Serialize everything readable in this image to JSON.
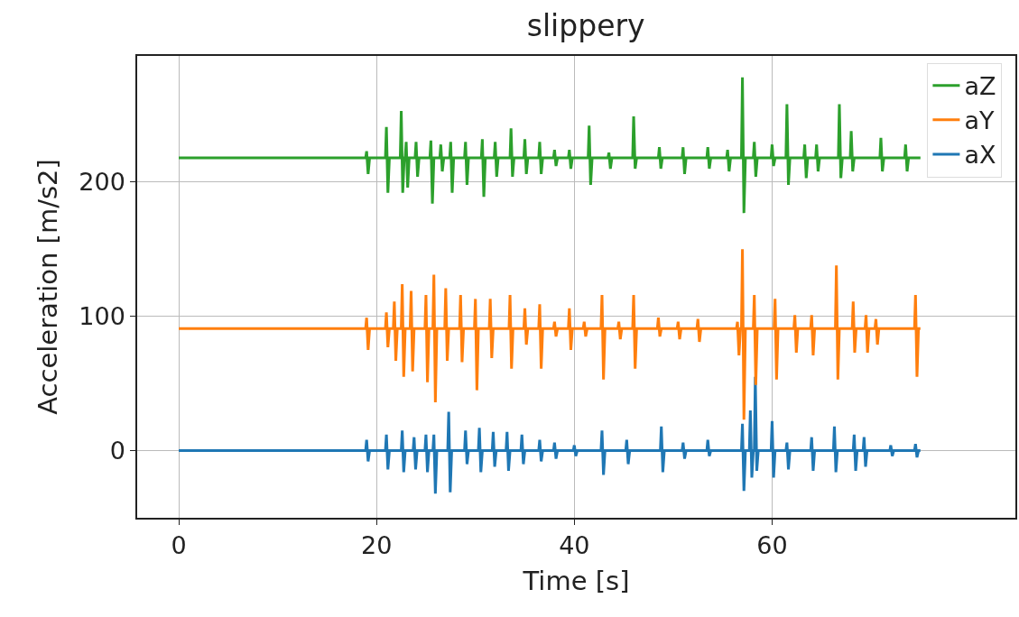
{
  "chart_data": {
    "type": "line",
    "title": "slippery",
    "xlabel": "Time [s]",
    "ylabel": "Acceleration [m/s2]",
    "xlim": [
      -4.2,
      84.6
    ],
    "xticks": [
      0,
      20,
      40,
      60
    ],
    "ylim": [
      -50,
      294
    ],
    "yticks": [
      0,
      100,
      200
    ],
    "grid": true,
    "legend": "top right",
    "series": [
      {
        "name": "aX",
        "color": "#1f77b4",
        "x": [
          0,
          18.5,
          18.9,
          19,
          19.15,
          19.3,
          20.9,
          21,
          21.15,
          21.3,
          22.5,
          22.6,
          22.75,
          22.9,
          23.7,
          23.8,
          23.95,
          24.1,
          24.9,
          25,
          25.15,
          25.3,
          25.7,
          25.8,
          25.95,
          26.1,
          27.2,
          27.3,
          27.45,
          27.6,
          28.9,
          29,
          29.15,
          29.3,
          30.3,
          30.4,
          30.55,
          30.7,
          31.7,
          31.8,
          31.95,
          32.1,
          33.1,
          33.2,
          33.35,
          33.5,
          34.6,
          34.7,
          34.85,
          35,
          36.4,
          36.5,
          36.65,
          36.8,
          37.9,
          38,
          38.15,
          38.3,
          39.9,
          40,
          40.15,
          40.3,
          42.7,
          42.8,
          42.95,
          43.1,
          45.2,
          45.3,
          45.45,
          45.6,
          48.7,
          48.8,
          48.95,
          49.1,
          50.9,
          51,
          51.15,
          51.3,
          53.4,
          53.5,
          53.65,
          53.8,
          56.9,
          57,
          57.15,
          57.3,
          57.7,
          57.8,
          57.95,
          58.1,
          58.2,
          58.3,
          58.45,
          58.6,
          59.9,
          60,
          60.15,
          60.3,
          61.4,
          61.5,
          61.65,
          61.8,
          63.9,
          64,
          64.15,
          64.3,
          66.2,
          66.3,
          66.45,
          66.6,
          68.2,
          68.3,
          68.45,
          68.6,
          69.2,
          69.3,
          69.45,
          69.6,
          71.9,
          72,
          72.15,
          72.3,
          74.4,
          74.5,
          74.65,
          74.8,
          75
        ],
        "values": [
          0,
          0,
          0,
          8,
          -8,
          0,
          0,
          12,
          -14,
          0,
          0,
          15,
          -16,
          0,
          0,
          10,
          -14,
          0,
          0,
          12,
          -16,
          0,
          0,
          12,
          -32,
          0,
          0,
          29,
          -31,
          0,
          0,
          15,
          -10,
          0,
          0,
          17,
          -16,
          0,
          0,
          14,
          -12,
          0,
          0,
          14,
          -15,
          0,
          0,
          12,
          -10,
          0,
          0,
          8,
          -8,
          0,
          0,
          6,
          -6,
          0,
          0,
          4,
          -4,
          0,
          0,
          15,
          -18,
          0,
          0,
          8,
          -10,
          0,
          0,
          18,
          -16,
          0,
          0,
          6,
          -6,
          0,
          0,
          8,
          -4,
          0,
          0,
          20,
          -30,
          0,
          0,
          30,
          -20,
          0,
          0,
          55,
          -15,
          0,
          0,
          22,
          -20,
          0,
          0,
          6,
          -14,
          0,
          0,
          10,
          -15,
          0,
          0,
          18,
          -16,
          0,
          0,
          12,
          -15,
          0,
          0,
          10,
          -12,
          0,
          0,
          4,
          -4,
          0,
          0,
          5,
          -5,
          0,
          0
        ]
      },
      {
        "name": "aY",
        "color": "#ff7f0e",
        "x": [
          0,
          18.5,
          18.9,
          19,
          19.15,
          19.3,
          20.9,
          21,
          21.15,
          21.3,
          21.7,
          21.8,
          21.95,
          22.1,
          22.5,
          22.6,
          22.75,
          22.9,
          23.4,
          23.5,
          23.65,
          23.8,
          24.9,
          25,
          25.15,
          25.3,
          25.7,
          25.8,
          25.95,
          26.1,
          26.9,
          27,
          27.15,
          27.3,
          28.4,
          28.5,
          28.65,
          28.8,
          29.9,
          30,
          30.15,
          30.3,
          31.4,
          31.5,
          31.65,
          31.8,
          33.4,
          33.5,
          33.65,
          33.8,
          34.9,
          35,
          35.15,
          35.3,
          36.4,
          36.5,
          36.65,
          36.8,
          37.9,
          38,
          38.15,
          38.3,
          39.4,
          39.5,
          39.65,
          39.8,
          40.9,
          41,
          41.15,
          41.3,
          42.7,
          42.8,
          42.95,
          43.1,
          44.4,
          44.5,
          44.65,
          44.8,
          45.9,
          46,
          46.15,
          46.3,
          48.4,
          48.5,
          48.65,
          48.8,
          50.4,
          50.5,
          50.65,
          50.8,
          52.4,
          52.5,
          52.65,
          52.8,
          56.4,
          56.5,
          56.65,
          56.8,
          56.9,
          57,
          57.15,
          57.3,
          58.1,
          58.2,
          58.35,
          58.5,
          60.2,
          60.3,
          60.45,
          60.6,
          62.2,
          62.3,
          62.45,
          62.6,
          63.9,
          64,
          64.15,
          64.3,
          66.4,
          66.5,
          66.65,
          66.8,
          68.1,
          68.2,
          68.35,
          68.5,
          69.4,
          69.5,
          69.65,
          69.8,
          70.4,
          70.5,
          70.65,
          70.8,
          74.4,
          74.5,
          74.65,
          74.8,
          75
        ],
        "values": [
          91,
          91,
          91,
          99,
          75,
          91,
          91,
          103,
          77,
          91,
          91,
          111,
          67,
          91,
          91,
          124,
          55,
          91,
          91,
          119,
          59,
          91,
          91,
          116,
          51,
          91,
          91,
          131,
          36,
          91,
          91,
          121,
          67,
          91,
          91,
          116,
          66,
          91,
          91,
          113,
          45,
          91,
          91,
          113,
          69,
          91,
          91,
          116,
          61,
          91,
          91,
          106,
          79,
          91,
          91,
          109,
          61,
          91,
          91,
          96,
          85,
          91,
          91,
          106,
          75,
          91,
          91,
          96,
          85,
          91,
          91,
          116,
          53,
          91,
          91,
          96,
          83,
          91,
          91,
          116,
          61,
          91,
          91,
          99,
          85,
          91,
          91,
          96,
          83,
          91,
          91,
          98,
          81,
          91,
          91,
          96,
          71,
          91,
          91,
          150,
          23,
          91,
          91,
          116,
          49,
          91,
          91,
          113,
          53,
          91,
          91,
          101,
          73,
          91,
          91,
          101,
          71,
          91,
          91,
          138,
          53,
          91,
          91,
          111,
          73,
          91,
          91,
          101,
          73,
          91,
          91,
          98,
          79,
          91,
          91,
          116,
          55,
          91,
          91
        ]
      },
      {
        "name": "aZ",
        "color": "#2ca02c",
        "x": [
          0,
          18.5,
          18.9,
          19,
          19.15,
          19.3,
          20.9,
          21,
          21.15,
          21.3,
          22.4,
          22.5,
          22.65,
          22.8,
          22.9,
          23,
          23.15,
          23.3,
          23.9,
          24,
          24.15,
          24.3,
          25.4,
          25.5,
          25.65,
          25.8,
          26.4,
          26.5,
          26.65,
          26.8,
          27.4,
          27.5,
          27.65,
          27.8,
          28.9,
          29,
          29.15,
          29.3,
          30.6,
          30.7,
          30.85,
          31,
          31.9,
          32,
          32.15,
          32.3,
          33.5,
          33.6,
          33.75,
          33.9,
          34.9,
          35,
          35.15,
          35.3,
          36.4,
          36.5,
          36.65,
          36.8,
          37.9,
          38,
          38.15,
          38.3,
          39.4,
          39.5,
          39.65,
          39.8,
          41.4,
          41.5,
          41.65,
          41.8,
          43.4,
          43.5,
          43.65,
          43.8,
          45.9,
          46,
          46.15,
          46.3,
          48.5,
          48.6,
          48.75,
          48.9,
          50.9,
          51,
          51.15,
          51.3,
          53.4,
          53.5,
          53.65,
          53.8,
          55.4,
          55.5,
          55.65,
          55.8,
          56.9,
          57,
          57.15,
          57.3,
          58.1,
          58.2,
          58.35,
          58.5,
          59.9,
          60,
          60.15,
          60.3,
          61.4,
          61.5,
          61.65,
          61.8,
          63.2,
          63.3,
          63.45,
          63.6,
          64.4,
          64.5,
          64.65,
          64.8,
          66.7,
          66.8,
          66.95,
          67.1,
          67.9,
          68,
          68.15,
          68.3,
          70.9,
          71,
          71.15,
          71.3,
          73.4,
          73.5,
          73.65,
          73.8,
          75
        ],
        "values": [
          218,
          218,
          218,
          223,
          206,
          218,
          218,
          241,
          192,
          218,
          218,
          253,
          192,
          218,
          218,
          230,
          196,
          218,
          218,
          230,
          204,
          218,
          218,
          231,
          184,
          218,
          218,
          228,
          208,
          218,
          218,
          230,
          192,
          218,
          218,
          230,
          198,
          218,
          218,
          232,
          189,
          218,
          218,
          230,
          204,
          218,
          218,
          240,
          204,
          218,
          218,
          232,
          206,
          218,
          218,
          230,
          206,
          218,
          218,
          224,
          212,
          218,
          218,
          224,
          210,
          218,
          218,
          242,
          198,
          218,
          218,
          222,
          210,
          218,
          218,
          249,
          210,
          218,
          218,
          226,
          210,
          218,
          218,
          226,
          206,
          218,
          218,
          226,
          210,
          218,
          218,
          224,
          208,
          218,
          218,
          278,
          177,
          218,
          218,
          230,
          204,
          218,
          218,
          228,
          212,
          218,
          218,
          258,
          198,
          218,
          218,
          228,
          203,
          218,
          218,
          228,
          208,
          218,
          218,
          258,
          203,
          218,
          218,
          238,
          208,
          218,
          218,
          233,
          208,
          218,
          218,
          228,
          208,
          218,
          218
        ]
      }
    ]
  }
}
